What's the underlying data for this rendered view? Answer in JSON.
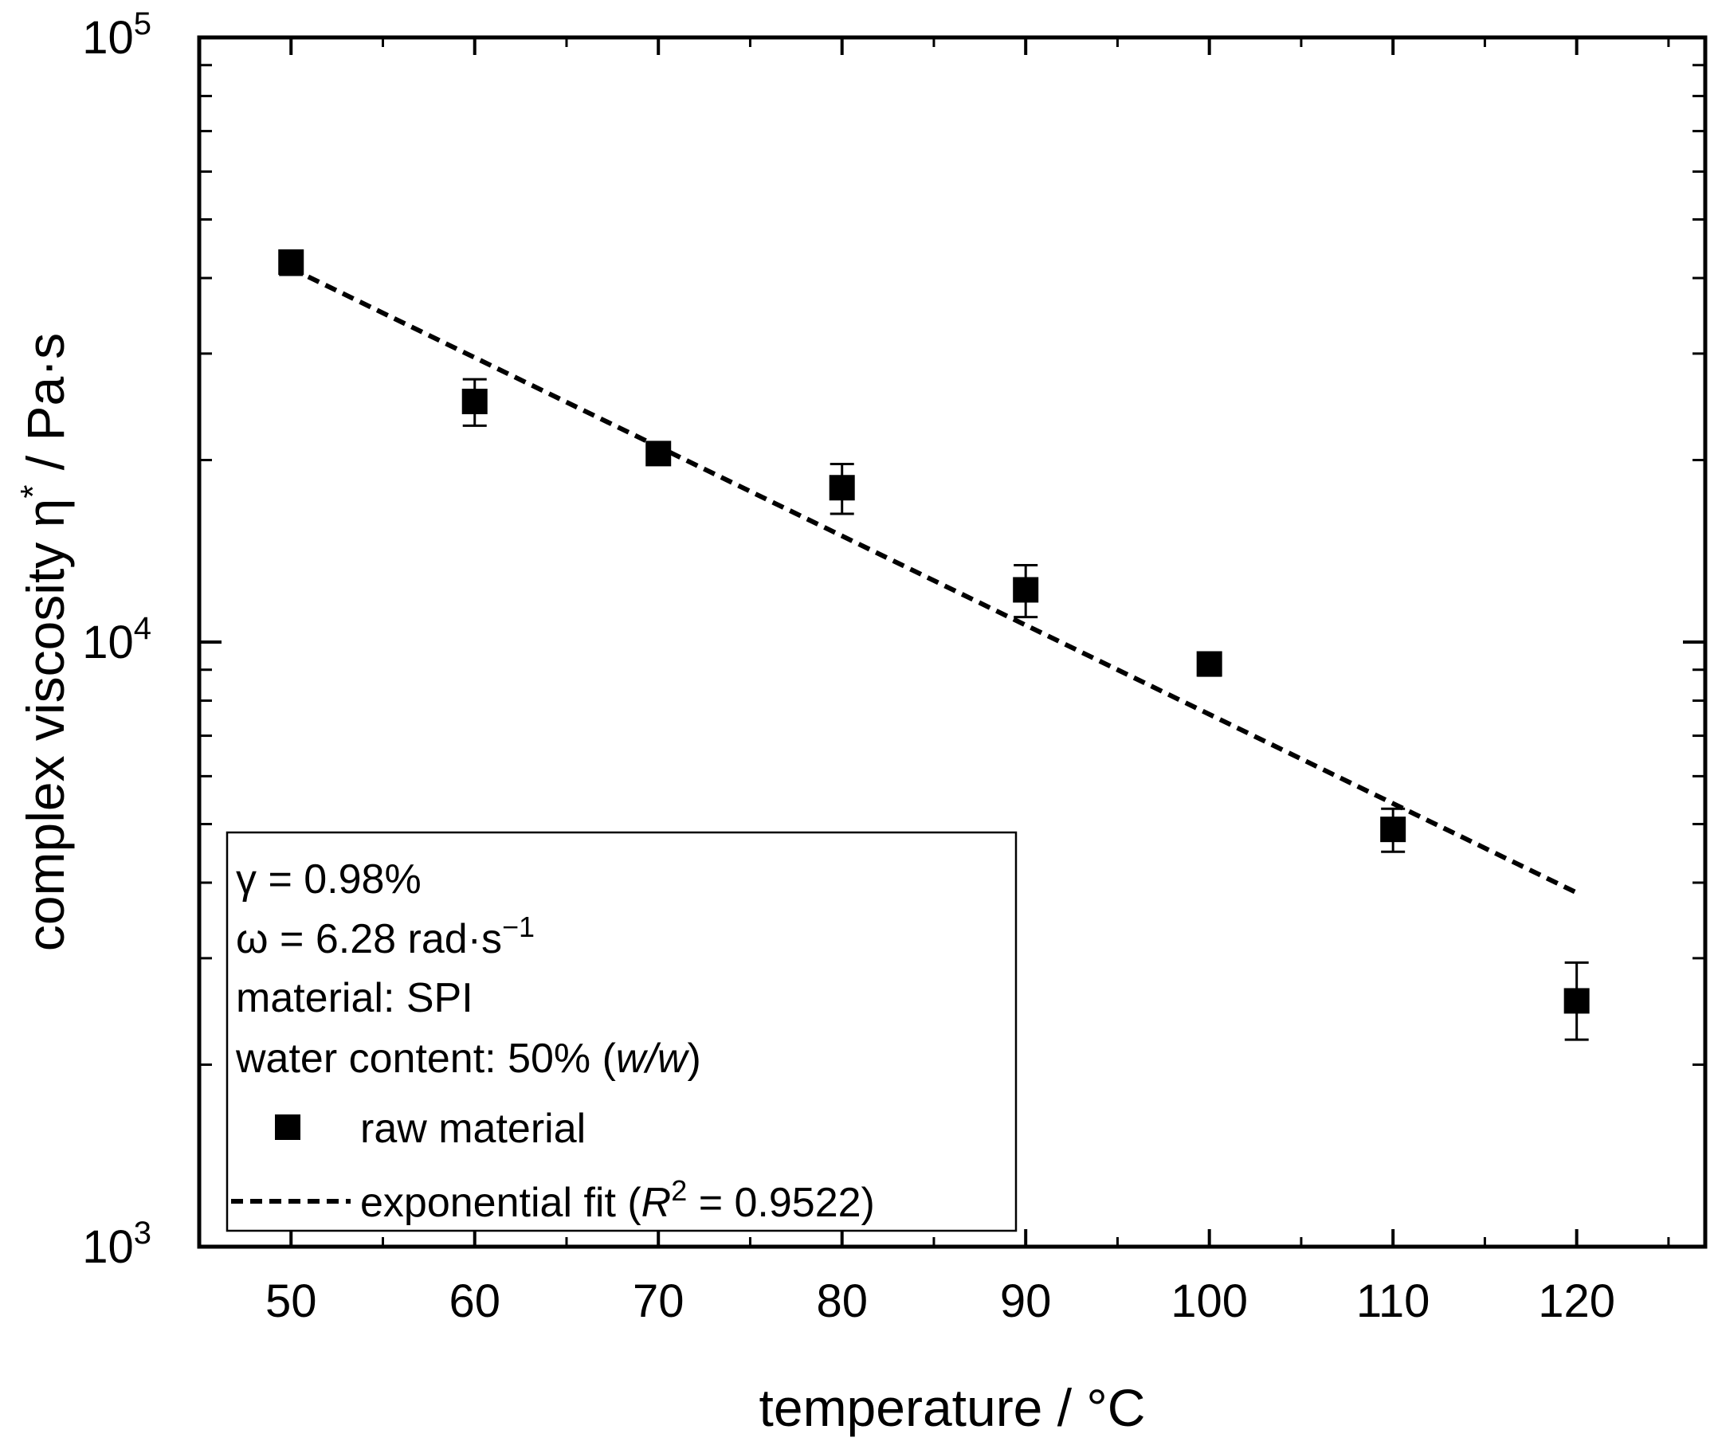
{
  "chart_data": {
    "type": "scatter",
    "xlabel": "temperature / °C",
    "ylabel": {
      "base": "complex viscosity η",
      "superscript": "*",
      "unit": " / Pa·s"
    },
    "xlim": [
      45,
      127
    ],
    "ylim": [
      1000,
      100000
    ],
    "yscale": "log",
    "x_ticks": [
      50,
      60,
      70,
      80,
      90,
      100,
      110,
      120
    ],
    "x_tick_labels": [
      "50",
      "60",
      "70",
      "80",
      "90",
      "100",
      "110",
      "120"
    ],
    "y_ticks": [
      1000,
      10000,
      100000
    ],
    "y_tick_labels": [
      {
        "base": "10",
        "exp": "3"
      },
      {
        "base": "10",
        "exp": "4"
      },
      {
        "base": "10",
        "exp": "5"
      }
    ],
    "series": [
      {
        "name": "raw material",
        "marker": "square",
        "x": [
          50,
          60,
          70,
          80,
          90,
          100,
          110,
          120
        ],
        "y": [
          42500,
          25000,
          20500,
          18000,
          12200,
          9200,
          4900,
          2550
        ],
        "err_low": [
          2000,
          2200,
          600,
          1700,
          1200,
          400,
          400,
          350
        ],
        "err_high": [
          1500,
          2200,
          600,
          1700,
          1200,
          400,
          400,
          400
        ]
      },
      {
        "name": "exponential fit",
        "style": "dashed",
        "x": [
          50,
          120
        ],
        "y": [
          41500,
          3850
        ]
      }
    ],
    "legend": {
      "placement": "bottom-left",
      "parameters": [
        {
          "symbol": "γ",
          "text": " = 0.98%"
        },
        {
          "symbol": "ω",
          "text": " = 6.28 rad·s",
          "superscript": "−1"
        },
        {
          "text": "material: SPI"
        },
        {
          "text": "water content: 50% (",
          "italic": "w/w",
          "text_after": ")"
        }
      ],
      "entries": [
        {
          "label": "raw material"
        },
        {
          "label_prefix": "exponential fit (",
          "italic": "R",
          "superscript": "2",
          "label_suffix": " = 0.9522)"
        }
      ]
    }
  }
}
